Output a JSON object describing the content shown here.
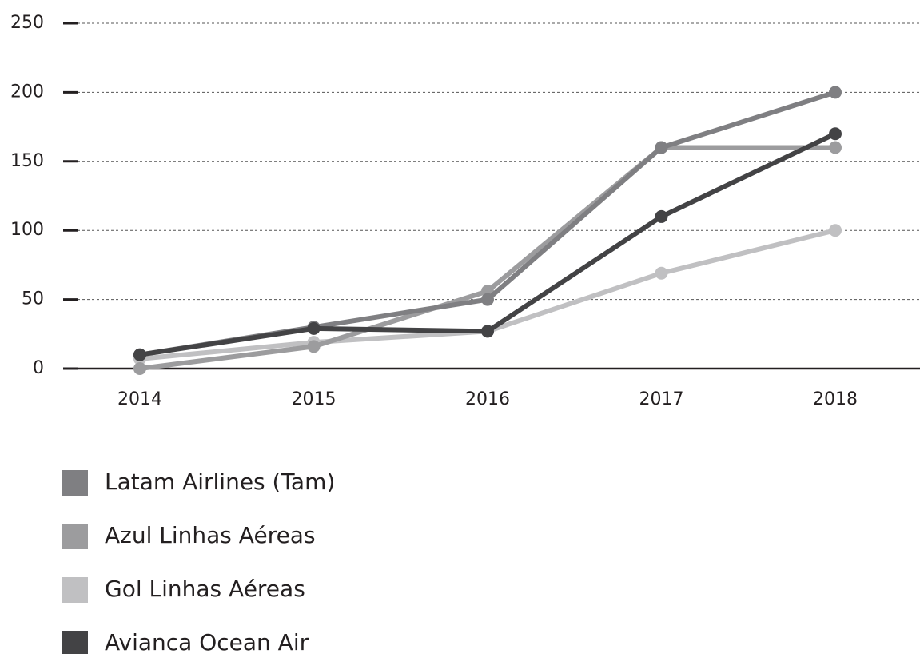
{
  "chart_data": {
    "type": "line",
    "x": [
      "2014",
      "2015",
      "2016",
      "2017",
      "2018"
    ],
    "series": [
      {
        "name": "Latam Airlines (Tam)",
        "color": "#7f7f82",
        "values": [
          10,
          30,
          50,
          160,
          200
        ]
      },
      {
        "name": "Azul Linhas Aéreas",
        "color": "#9c9c9e",
        "values": [
          0,
          16,
          56,
          160,
          160
        ]
      },
      {
        "name": "Gol Linhas Aéreas",
        "color": "#c0c0c2",
        "values": [
          7,
          19,
          27,
          69,
          100
        ]
      },
      {
        "name": "Avianca Ocean Air",
        "color": "#434345",
        "values": [
          10,
          29,
          27,
          110,
          170
        ]
      }
    ],
    "ylim": [
      0,
      250
    ],
    "yticks": [
      0,
      50,
      100,
      150,
      200,
      250
    ],
    "grid": true,
    "legend": "bottom-left"
  }
}
